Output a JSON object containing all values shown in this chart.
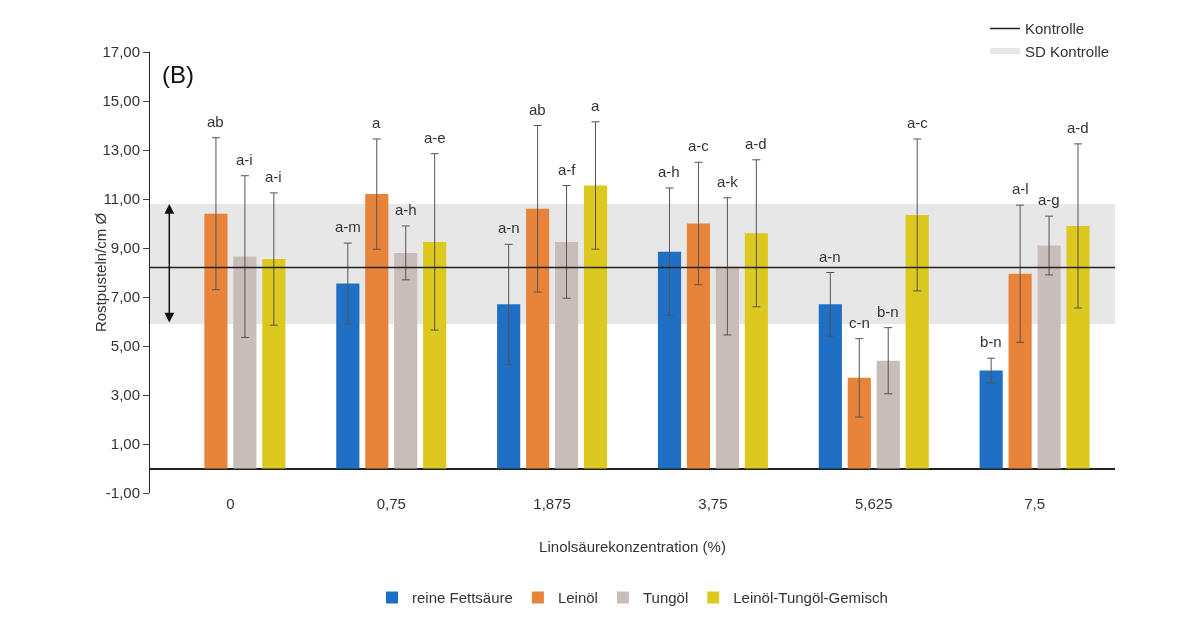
{
  "chart_data": {
    "type": "bar",
    "xlabel": "Linolsäurekonzentration (%)",
    "ylabel": "Rostpusteln/cm Ø",
    "categories": [
      "0",
      "0,75",
      "1,875",
      "3,75",
      "5,625",
      "7,5"
    ],
    "series": [
      {
        "name": "reine Fettsäure",
        "color": "#1f6fc5",
        "values": [
          null,
          7.55,
          6.7,
          8.85,
          6.7,
          4.0
        ],
        "errors": [
          null,
          1.65,
          2.45,
          2.6,
          1.3,
          0.5
        ]
      },
      {
        "name": "Leinöl",
        "color": "#e8843a",
        "values": [
          10.4,
          11.2,
          10.6,
          10.0,
          3.7,
          7.95
        ],
        "errors": [
          3.1,
          2.25,
          3.4,
          2.5,
          1.6,
          2.8
        ]
      },
      {
        "name": "Tungöl",
        "color": "#c9bdb9",
        "values": [
          8.65,
          8.8,
          9.25,
          8.25,
          4.4,
          9.1
        ],
        "errors": [
          3.3,
          1.1,
          2.3,
          2.8,
          1.35,
          1.2
        ]
      },
      {
        "name": "Leinöl-Tungöl-Gemisch",
        "color": "#dcc81e",
        "values": [
          8.55,
          9.25,
          11.55,
          9.6,
          10.35,
          9.9
        ],
        "errors": [
          2.7,
          3.6,
          2.6,
          3.0,
          3.1,
          3.35
        ]
      }
    ],
    "ylim": [
      -1,
      17
    ],
    "yticks": [
      {
        "value": -1,
        "label": "-1,00"
      },
      {
        "value": 1,
        "label": "1,00"
      },
      {
        "value": 3,
        "label": "3,00"
      },
      {
        "value": 5,
        "label": "5,00"
      },
      {
        "value": 7,
        "label": "7,00"
      },
      {
        "value": 9,
        "label": "9,00"
      },
      {
        "value": 11,
        "label": "11,00"
      },
      {
        "value": 13,
        "label": "13,00"
      },
      {
        "value": 15,
        "label": "15,00"
      },
      {
        "value": 17,
        "label": "17,00"
      }
    ],
    "ref_lines": [
      {
        "axis": "y",
        "value": 8.2,
        "label": "Kontrolle",
        "color": "#222222"
      }
    ],
    "bands": [
      {
        "axis": "y",
        "from": 5.9,
        "to": 10.8,
        "label": "SD Kontrolle",
        "color": "#111111"
      }
    ],
    "annotations": [
      "(B)",
      "ab",
      "a-i",
      "a-i",
      "a-m",
      "a",
      "a-h",
      "a-e",
      "a-n",
      "ab",
      "a-f",
      "a",
      "a-h",
      "a-c",
      "a-k",
      "a-d",
      "a-n",
      "c-n",
      "b-n",
      "a-c",
      "b-n",
      "a-l",
      "a-g",
      "a-d"
    ],
    "grid": false,
    "legend": "bottom"
  }
}
